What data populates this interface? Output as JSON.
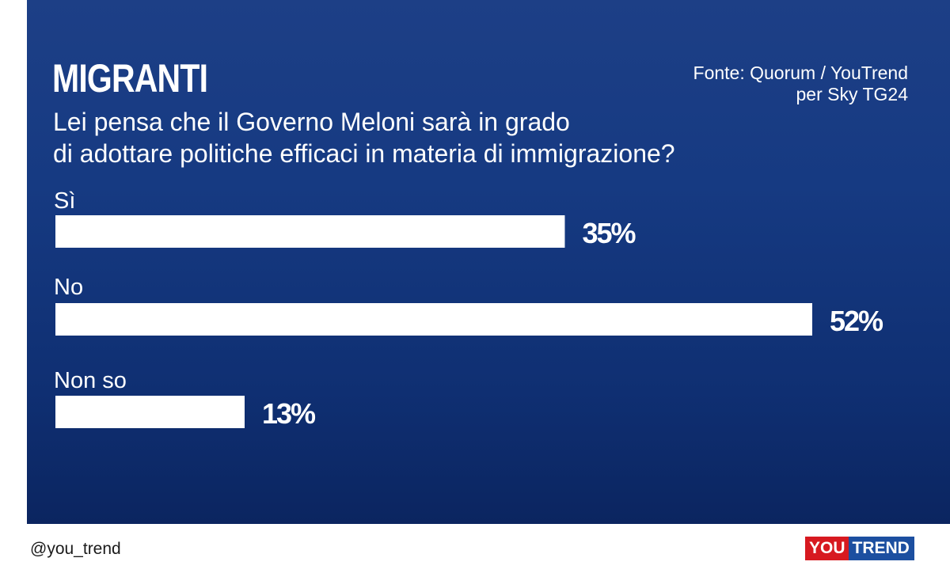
{
  "header": {
    "title": "MIGRANTI",
    "source_line1": "Fonte: Quorum / YouTrend",
    "source_line2": "per Sky TG24",
    "question_line1": "Lei pensa che il Governo Meloni sarà in grado",
    "question_line2": "di adottare politiche efficaci in materia di immigrazione?"
  },
  "chart_data": {
    "type": "bar",
    "orientation": "horizontal",
    "categories": [
      "Sì",
      "No",
      "Non so"
    ],
    "values": [
      35,
      52,
      13
    ],
    "value_labels": [
      "35%",
      "52%",
      "13%"
    ],
    "unit": "%",
    "xlim": [
      0,
      52
    ],
    "title": "MIGRANTI",
    "grid": false,
    "colors": {
      "bar": "#ffffff",
      "background": "#163a82",
      "text": "#ffffff"
    }
  },
  "footer": {
    "handle": "@you_trend",
    "logo_you": "YOU",
    "logo_trend": "TREND"
  },
  "colors": {
    "panel": "#163a82",
    "logo_red": "#d71920",
    "logo_blue": "#1c4fa0"
  }
}
